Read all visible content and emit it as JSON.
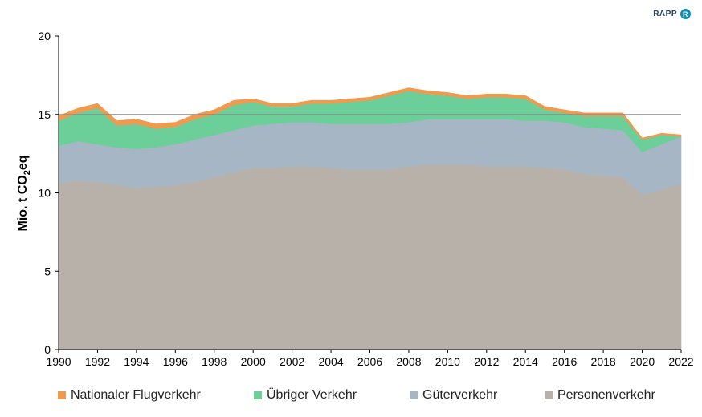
{
  "brand": {
    "name": "RAPP",
    "mark": "R"
  },
  "chart_data": {
    "type": "area",
    "stacked": true,
    "title": "",
    "xlabel": "",
    "ylabel_main": "Mio. t CO",
    "ylabel_sub": "2",
    "ylabel_tail": "eq",
    "x": [
      1990,
      1991,
      1992,
      1993,
      1994,
      1995,
      1996,
      1997,
      1998,
      1999,
      2000,
      2001,
      2002,
      2003,
      2004,
      2005,
      2006,
      2007,
      2008,
      2009,
      2010,
      2011,
      2012,
      2013,
      2014,
      2015,
      2016,
      2017,
      2018,
      2019,
      2020,
      2021,
      2022
    ],
    "xticks": [
      "1990",
      "1992",
      "1994",
      "1996",
      "1998",
      "2000",
      "2002",
      "2004",
      "2006",
      "2008",
      "2010",
      "2012",
      "2014",
      "2016",
      "2018",
      "2020",
      "2022"
    ],
    "yticks": [
      "0",
      "5",
      "10",
      "15",
      "20"
    ],
    "ylim": [
      0,
      20
    ],
    "xlim": [
      1990,
      2022
    ],
    "reference_line": 15,
    "legend_position": "bottom",
    "series": [
      {
        "name": "Personenverkehr",
        "color": "#b8b1aa",
        "values": [
          10.6,
          10.8,
          10.7,
          10.5,
          10.3,
          10.4,
          10.5,
          10.7,
          11.0,
          11.3,
          11.6,
          11.6,
          11.7,
          11.7,
          11.6,
          11.5,
          11.5,
          11.5,
          11.7,
          11.8,
          11.8,
          11.8,
          11.7,
          11.7,
          11.7,
          11.6,
          11.5,
          11.2,
          11.1,
          11.0,
          9.9,
          10.2,
          10.6
        ]
      },
      {
        "name": "Güterverkehr",
        "color": "#a7b6c4",
        "values": [
          2.4,
          2.5,
          2.4,
          2.4,
          2.5,
          2.5,
          2.6,
          2.7,
          2.7,
          2.7,
          2.7,
          2.8,
          2.8,
          2.8,
          2.8,
          2.9,
          2.9,
          2.9,
          2.8,
          2.9,
          2.9,
          2.9,
          3.0,
          3.0,
          2.9,
          3.0,
          3.0,
          3.0,
          3.0,
          3.0,
          2.7,
          2.9,
          3.0
        ]
      },
      {
        "name": "Übriger Verkehr",
        "color": "#6ccf9a",
        "values": [
          1.6,
          1.8,
          2.3,
          1.4,
          1.6,
          1.2,
          1.1,
          1.3,
          1.3,
          1.6,
          1.5,
          1.1,
          1.0,
          1.2,
          1.3,
          1.4,
          1.5,
          1.8,
          2.0,
          1.6,
          1.5,
          1.3,
          1.4,
          1.4,
          1.4,
          0.7,
          0.6,
          0.7,
          0.8,
          0.9,
          0.8,
          0.6,
          0.0
        ]
      },
      {
        "name": "Nationaler Flugverkehr",
        "color": "#ef9a4e",
        "values": [
          0.3,
          0.3,
          0.3,
          0.3,
          0.3,
          0.3,
          0.3,
          0.3,
          0.3,
          0.3,
          0.2,
          0.2,
          0.2,
          0.2,
          0.2,
          0.2,
          0.2,
          0.2,
          0.2,
          0.2,
          0.2,
          0.2,
          0.2,
          0.2,
          0.2,
          0.2,
          0.2,
          0.2,
          0.2,
          0.2,
          0.1,
          0.1,
          0.1
        ]
      }
    ],
    "legend_order": [
      "Nationaler Flugverkehr",
      "Übriger Verkehr",
      "Güterverkehr",
      "Personenverkehr"
    ]
  }
}
